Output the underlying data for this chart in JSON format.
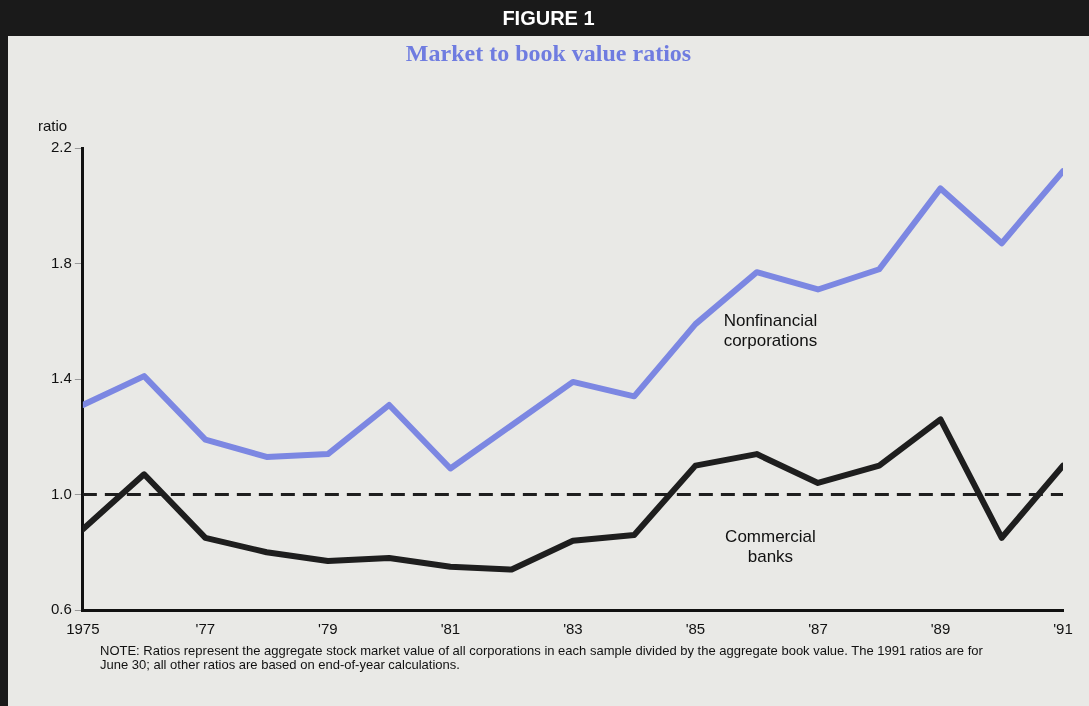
{
  "chart_data": {
    "type": "line",
    "title": "FIGURE 1",
    "subtitle": "Market to book value ratios",
    "ylabel": "ratio",
    "x": [
      1975,
      1976,
      1977,
      1978,
      1979,
      1980,
      1981,
      1982,
      1983,
      1984,
      1985,
      1986,
      1987,
      1988,
      1989,
      1990,
      1991
    ],
    "series": [
      {
        "name": "Nonfinancial corporations",
        "color": "#7c87e2",
        "values": [
          1.31,
          1.41,
          1.19,
          1.13,
          1.14,
          1.31,
          1.09,
          1.24,
          1.39,
          1.34,
          1.59,
          1.77,
          1.71,
          1.78,
          2.06,
          1.87,
          2.12
        ]
      },
      {
        "name": "Commercial banks",
        "color": "#1e1e1e",
        "values": [
          0.88,
          1.07,
          0.85,
          0.8,
          0.77,
          0.78,
          0.75,
          0.74,
          0.84,
          0.86,
          1.1,
          1.14,
          1.04,
          1.1,
          1.26,
          0.85,
          1.1
        ]
      }
    ],
    "xlim": [
      1975,
      1991
    ],
    "xticks": [
      1975,
      {
        "value": 1977,
        "label": "'77"
      },
      {
        "value": 1979,
        "label": "'79"
      },
      {
        "value": 1981,
        "label": "'81"
      },
      {
        "value": 1983,
        "label": "'83"
      },
      {
        "value": 1985,
        "label": "'85"
      },
      {
        "value": 1987,
        "label": "'87"
      },
      {
        "value": 1989,
        "label": "'89"
      },
      {
        "value": 1991,
        "label": "'91"
      }
    ],
    "ylim": [
      0.6,
      2.2
    ],
    "yticks": [
      0.6,
      {
        "value": 1.0,
        "label": "1.0"
      },
      1.4,
      1.8,
      2.2
    ],
    "ref_lines": [
      {
        "axis": "y",
        "value": 1.0,
        "color": "#1e1e1e",
        "line_style": "dashed"
      }
    ],
    "grid": false,
    "legend": false,
    "marker": "none",
    "line_style": "solid",
    "annotations": [
      "NOTE: Ratios represent the aggregate stock market value of all corporations in each sample divided by the aggregate book value.  The 1991 ratios are for June 30; all other ratios are based on end-of-year calculations."
    ]
  }
}
